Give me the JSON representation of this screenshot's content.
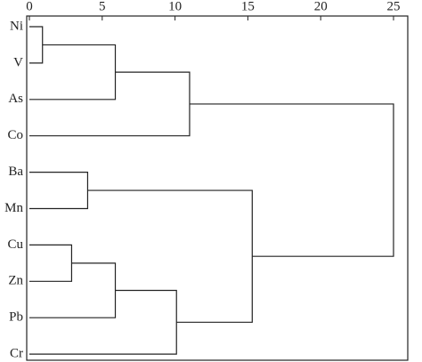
{
  "chart_data": {
    "type": "dendrogram",
    "leaves": [
      "Ni",
      "V",
      "As",
      "Co",
      "Ba",
      "Mn",
      "Cu",
      "Zn",
      "Pb",
      "Cr"
    ],
    "merges": [
      {
        "a": 0,
        "b": 1,
        "height": 0.9
      },
      {
        "a": 10,
        "b": 2,
        "height": 5.9
      },
      {
        "a": 11,
        "b": 3,
        "height": 11
      },
      {
        "a": 4,
        "b": 5,
        "height": 4
      },
      {
        "a": 6,
        "b": 7,
        "height": 2.9
      },
      {
        "a": 14,
        "b": 8,
        "height": 5.9
      },
      {
        "a": 15,
        "b": 9,
        "height": 10.1
      },
      {
        "a": 13,
        "b": 16,
        "height": 15.3
      },
      {
        "a": 12,
        "b": 17,
        "height": 25
      }
    ],
    "xlim": [
      0,
      25
    ],
    "xticks": [
      0,
      5,
      10,
      15,
      20,
      25
    ]
  }
}
